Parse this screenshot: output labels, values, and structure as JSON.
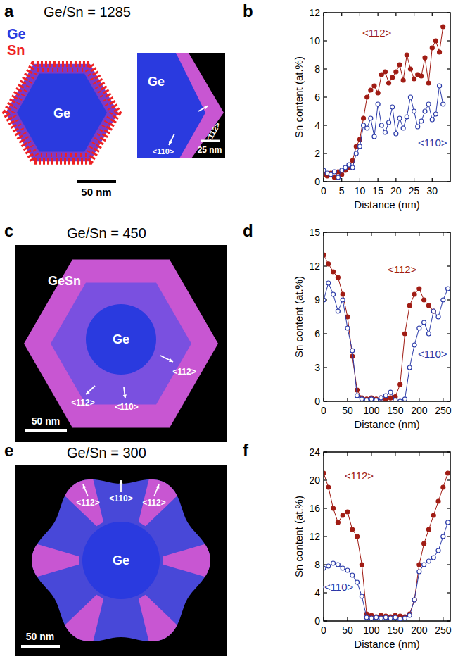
{
  "panel_labels": [
    "a",
    "b",
    "c",
    "d",
    "e",
    "f"
  ],
  "images": [
    {
      "title": "Ge/Sn = 1285",
      "legend": [
        {
          "name": "Ge",
          "color": "#2a3adf"
        },
        {
          "name": "Sn",
          "color": "#ee2222"
        }
      ],
      "labels": [
        "Ge",
        "Ge",
        "<110>",
        "<112>",
        "50 nm",
        "25 nm"
      ]
    },
    {
      "title": "Ge/Sn = 450",
      "labels": [
        "GeSn",
        "Ge",
        "<112>",
        "<110>",
        "<112>",
        "50 nm"
      ]
    },
    {
      "title": "Ge/Sn = 300",
      "labels": [
        "<112>",
        "<110>",
        "<112>",
        "Ge",
        "50 nm"
      ]
    }
  ],
  "chart_data": [
    {
      "type": "line",
      "x_label": "Distance (nm)",
      "y_label": "Sn content (at.%)",
      "xlim": [
        0,
        35
      ],
      "xticks": [
        0,
        5,
        10,
        15,
        20,
        25,
        30
      ],
      "ylim": [
        0,
        12
      ],
      "yticks": [
        0,
        2,
        4,
        6,
        8,
        10,
        12
      ],
      "x": [
        0,
        1,
        2,
        3,
        4,
        5,
        6,
        7,
        8,
        9,
        10,
        11,
        12,
        13,
        14,
        15,
        16,
        17,
        18,
        19,
        20,
        21,
        22,
        23,
        24,
        25,
        26,
        27,
        28,
        29,
        30,
        31,
        32,
        33
      ],
      "series": [
        {
          "name": "<112>",
          "color": "#a01c14",
          "marker": "circle",
          "line_style": "solid",
          "values": [
            0.5,
            0.4,
            0.6,
            0.3,
            0.7,
            0.5,
            0.8,
            1.0,
            1.5,
            2.5,
            3.0,
            4.5,
            6.0,
            6.5,
            6.8,
            6.3,
            7.6,
            7.8,
            7.0,
            7.4,
            7.8,
            8.3,
            7.2,
            9.0,
            8.0,
            7.3,
            7.6,
            7.5,
            8.8,
            7.0,
            9.5,
            10.0,
            9.2,
            11.0
          ]
        },
        {
          "name": "<110>",
          "color": "#2a3aa8",
          "marker": "open-circle",
          "line_style": "solid",
          "values": [
            0.8,
            0.6,
            0.5,
            0.7,
            0.3,
            0.8,
            1.0,
            1.2,
            1.0,
            2.0,
            2.5,
            4.0,
            3.8,
            4.5,
            3.2,
            5.5,
            4.0,
            3.5,
            4.2,
            5.3,
            3.4,
            4.5,
            3.8,
            4.6,
            6.0,
            5.0,
            3.9,
            4.3,
            5.0,
            5.5,
            4.4,
            4.8,
            6.8,
            5.5
          ]
        }
      ]
    },
    {
      "type": "line",
      "x_label": "Distance (nm)",
      "y_label": "Sn content (at.%)",
      "xlim": [
        0,
        265
      ],
      "xticks": [
        0,
        50,
        100,
        150,
        200,
        250
      ],
      "ylim": [
        0,
        15
      ],
      "yticks": [
        0,
        3,
        6,
        9,
        12,
        15
      ],
      "x": [
        0,
        10,
        20,
        30,
        40,
        50,
        60,
        70,
        80,
        90,
        100,
        110,
        120,
        130,
        140,
        150,
        160,
        170,
        180,
        190,
        200,
        210,
        220,
        230,
        240,
        250,
        260
      ],
      "series": [
        {
          "name": "<112>",
          "color": "#a01c14",
          "marker": "circle",
          "line_style": "solid",
          "values": [
            13.0,
            12.2,
            11.5,
            11.0,
            9.5,
            7.5,
            4.0,
            1.0,
            0.3,
            0.2,
            0.3,
            0.2,
            0.3,
            0.2,
            0.3,
            0.4,
            1.5,
            6.0,
            8.5,
            9.5,
            10.0,
            9.0,
            8.5,
            8.0,
            null,
            null,
            null
          ]
        },
        {
          "name": "<110>",
          "color": "#2a3aa8",
          "marker": "open-circle",
          "line_style": "solid",
          "values": [
            9.0,
            10.5,
            9.5,
            8.0,
            9.0,
            6.5,
            4.5,
            0.5,
            0.2,
            0.1,
            0.2,
            0.1,
            0.3,
            0.5,
            0.8,
            0.1,
            0.0,
            0.2,
            3.0,
            5.0,
            6.5,
            7.0,
            6.0,
            8.0,
            7.5,
            9.0,
            10.0
          ]
        }
      ]
    },
    {
      "type": "line",
      "x_label": "Distance (nm)",
      "y_label": "Sn content (at.%)",
      "xlim": [
        0,
        265
      ],
      "xticks": [
        0,
        50,
        100,
        150,
        200,
        250
      ],
      "ylim": [
        0,
        24
      ],
      "yticks": [
        0,
        4,
        8,
        12,
        16,
        20,
        24
      ],
      "x": [
        0,
        10,
        20,
        30,
        40,
        50,
        60,
        70,
        80,
        90,
        100,
        110,
        120,
        130,
        140,
        150,
        160,
        170,
        180,
        190,
        200,
        210,
        220,
        230,
        240,
        250,
        260
      ],
      "series": [
        {
          "name": "<112>",
          "color": "#a01c14",
          "marker": "circle",
          "line_style": "solid",
          "values": [
            21,
            19,
            16,
            14,
            15,
            15.5,
            13,
            12,
            8,
            1.0,
            0.8,
            0.6,
            0.8,
            0.7,
            0.6,
            0.8,
            0.7,
            0.6,
            1.0,
            3,
            8,
            11,
            13,
            15,
            17,
            19,
            21
          ]
        },
        {
          "name": "<110>",
          "color": "#2a3aa8",
          "marker": "open-circle",
          "line_style": "solid",
          "values": [
            7.5,
            7.8,
            8.2,
            8.0,
            7.5,
            7.2,
            6.5,
            5.5,
            3.5,
            0.5,
            0.4,
            0.5,
            0.4,
            0.5,
            0.4,
            0.5,
            0.3,
            0.4,
            0.8,
            3,
            7,
            8,
            8.5,
            9,
            10,
            12,
            14
          ]
        }
      ]
    }
  ]
}
